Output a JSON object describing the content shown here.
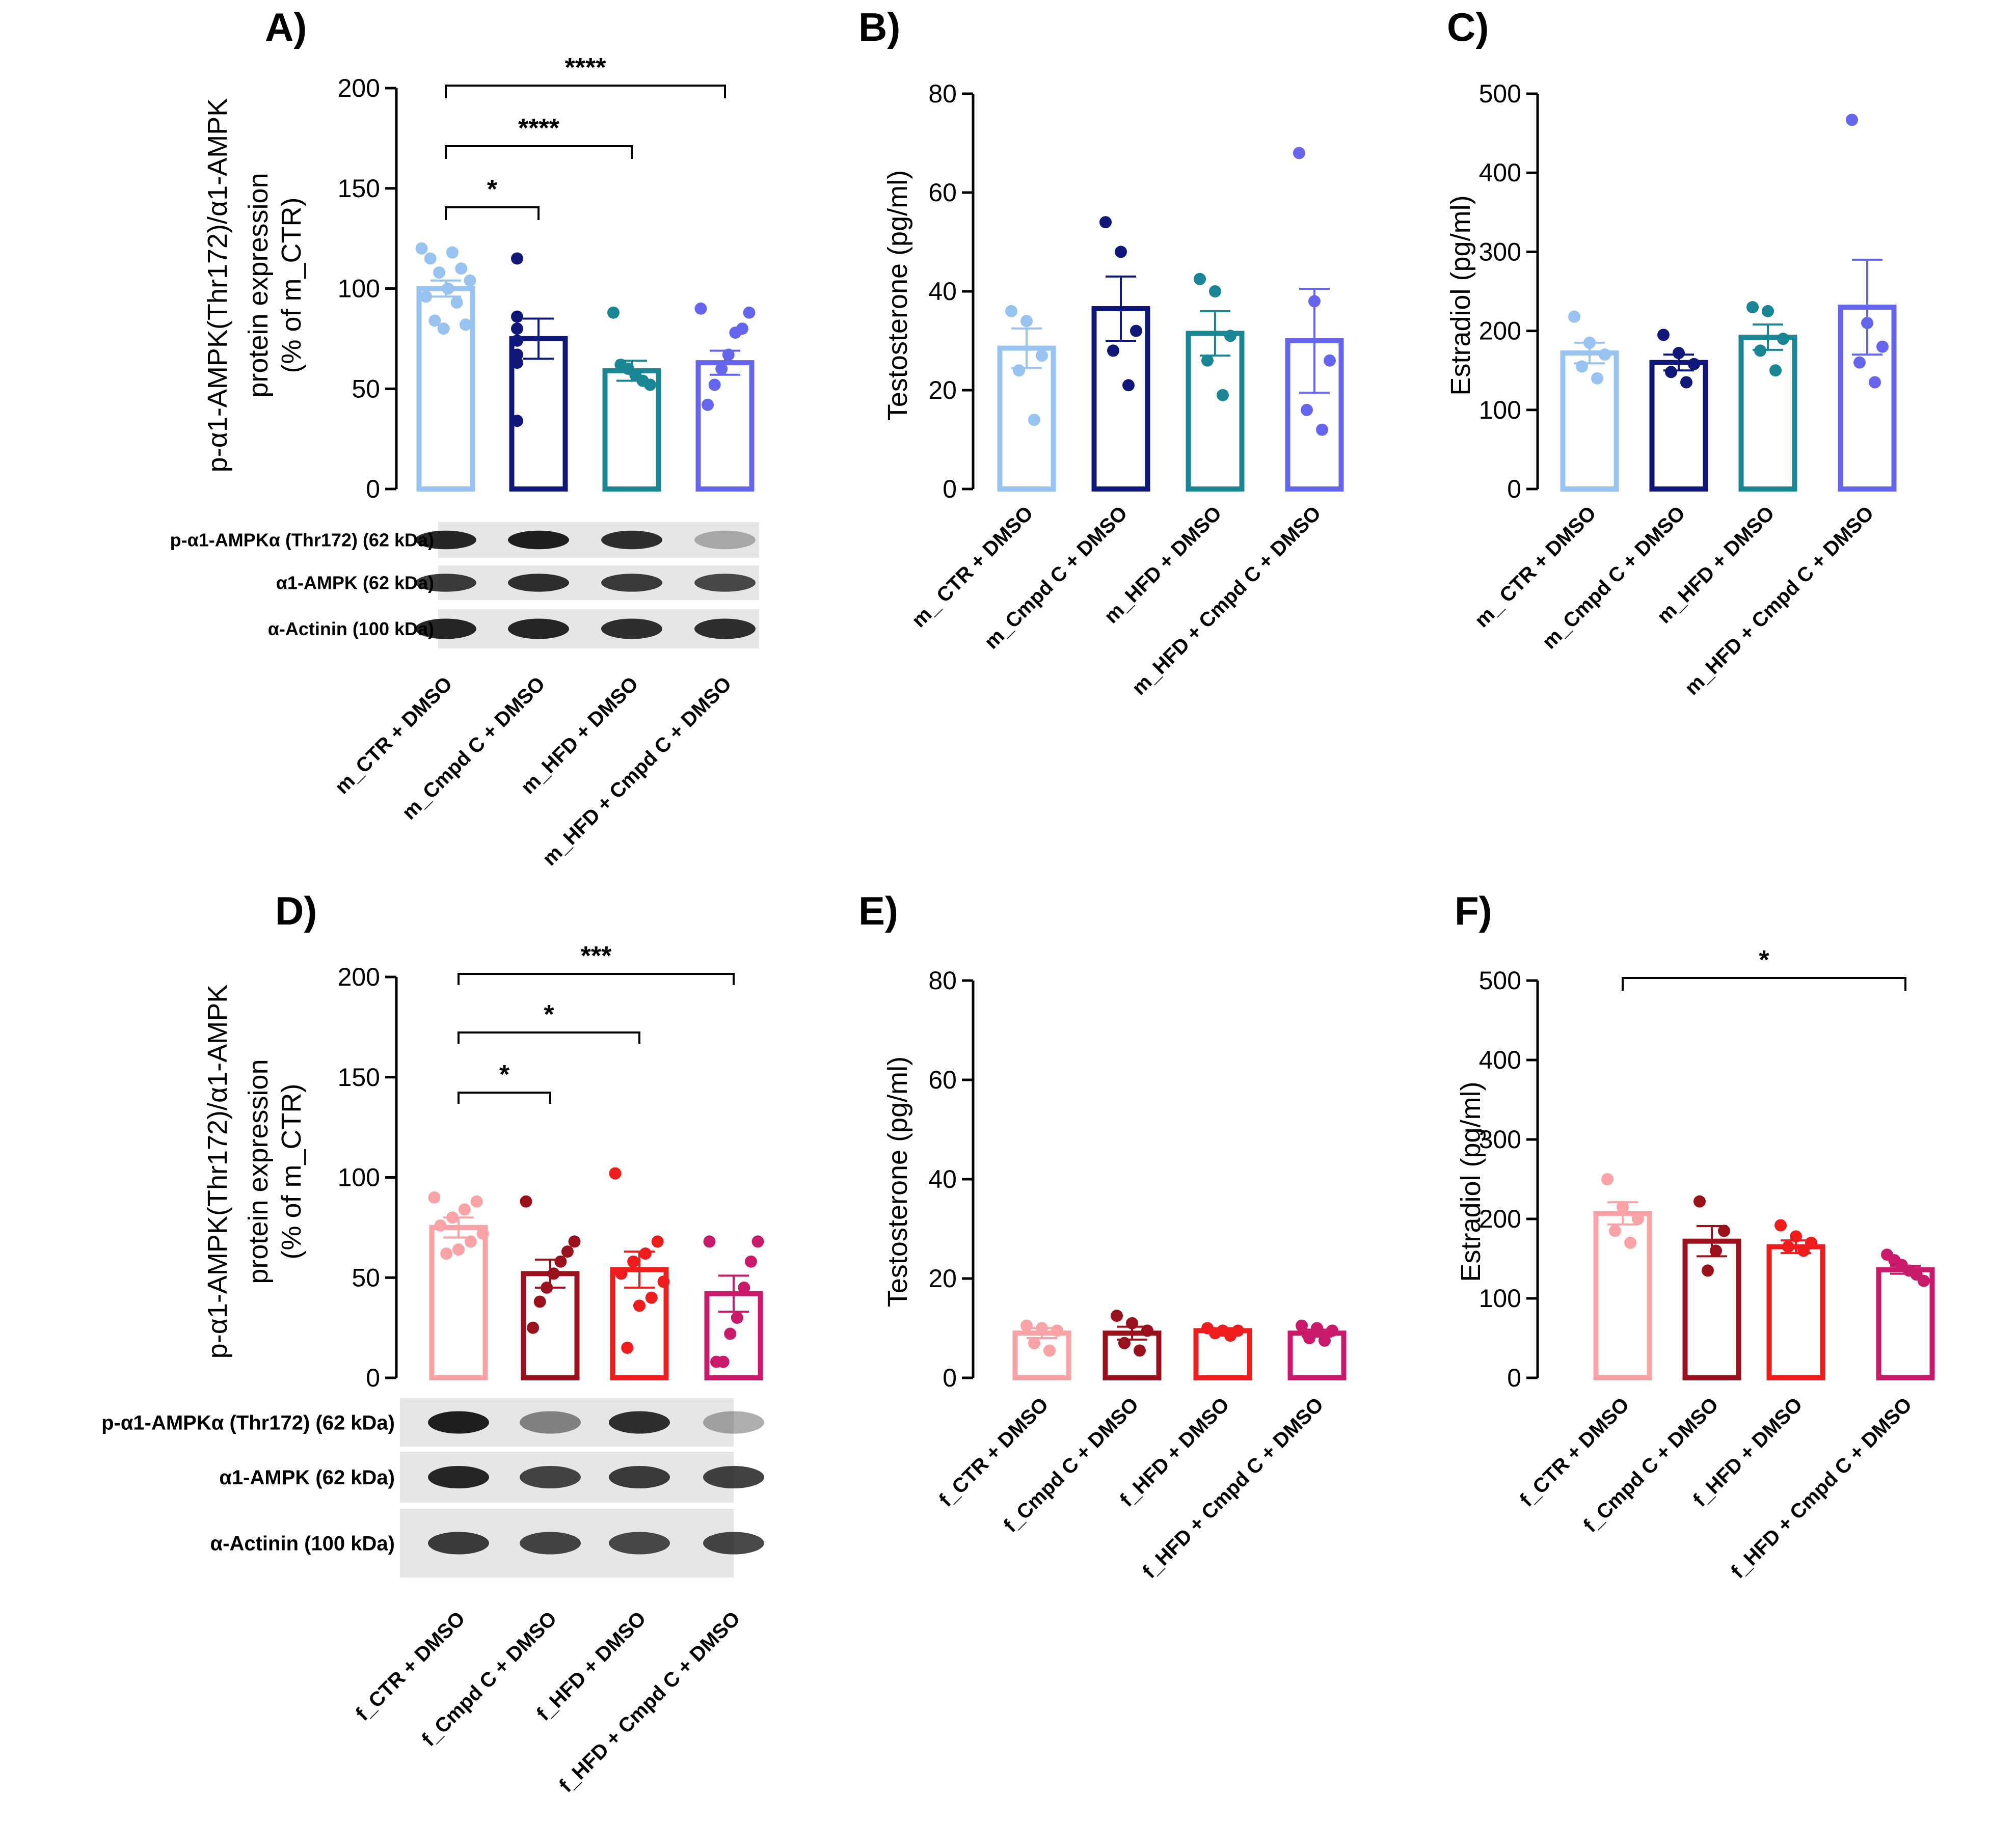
{
  "chart_data": [
    {
      "id": "A",
      "panel_label": "A)",
      "type": "bar",
      "ylabel_lines": [
        "p-α1-AMPK(Thr172)/α1-AMPK",
        "protein expression",
        "(% of m_CTR)"
      ],
      "ylim": [
        0,
        200
      ],
      "yticks": [
        0,
        50,
        100,
        150,
        200
      ],
      "tick_labels": [
        "0",
        "50",
        "100",
        "150",
        "200"
      ],
      "categories": [
        "m_CTR + DMSO",
        "m_Cmpd C + DMSO",
        "m_HFD + DMSO",
        "m_HFD + Cmpd C + DMSO"
      ],
      "colors": [
        "#98c2f0",
        "#0f1878",
        "#1a8694",
        "#6565ee"
      ],
      "means": [
        100,
        75,
        59,
        63
      ],
      "sems": [
        4,
        10,
        5,
        6
      ],
      "points": [
        [
          120,
          118,
          115,
          110,
          108,
          104,
          100,
          96,
          93,
          84,
          82,
          80
        ],
        [
          115,
          86,
          80,
          74,
          67,
          63,
          34
        ],
        [
          88,
          62,
          60,
          57,
          54,
          52
        ],
        [
          90,
          88,
          80,
          78,
          67,
          60,
          52,
          42
        ]
      ],
      "significance": [
        {
          "from": 0,
          "to": 1,
          "label": "*"
        },
        {
          "from": 0,
          "to": 2,
          "label": "****"
        },
        {
          "from": 0,
          "to": 3,
          "label": "****"
        }
      ],
      "blot_labels": [
        "p-α1-AMPKα (Thr172) (62 kDa)",
        "α1-AMPK (62 kDa)",
        "α-Actinin (100 kDa)"
      ]
    },
    {
      "id": "B",
      "panel_label": "B)",
      "type": "bar",
      "ylabel_lines": [
        "Testosterone (pg/ml)"
      ],
      "ylim": [
        0,
        80
      ],
      "yticks": [
        0,
        20,
        40,
        60,
        80
      ],
      "tick_labels": [
        "0",
        "20",
        "40",
        "60",
        "80"
      ],
      "categories": [
        "m_ CTR + DMSO",
        "m_Cmpd C + DMSO",
        "m_HFD + DMSO",
        "m_HFD + Cmpd C + DMSO"
      ],
      "colors": [
        "#98c2f0",
        "#0f1878",
        "#1a8694",
        "#6565ee"
      ],
      "means": [
        28.5,
        36.5,
        31.5,
        30
      ],
      "sems": [
        4,
        6.5,
        4.5,
        10.5
      ],
      "points": [
        [
          36,
          34,
          27,
          24,
          14
        ],
        [
          54,
          48,
          32,
          28,
          21
        ],
        [
          42.5,
          40,
          31,
          26,
          19
        ],
        [
          68,
          38,
          26,
          16,
          12
        ]
      ],
      "significance": []
    },
    {
      "id": "C",
      "panel_label": "C)",
      "type": "bar",
      "ylabel_lines": [
        "Estradiol (pg/ml)"
      ],
      "ylim": [
        0,
        500
      ],
      "yticks": [
        0,
        100,
        200,
        300,
        400,
        500
      ],
      "tick_labels": [
        "0",
        "100",
        "200",
        "300",
        "400",
        "500"
      ],
      "categories": [
        "m_ CTR + DMSO",
        "m_Cmpd C + DMSO",
        "m_HFD + DMSO",
        "m_HFD + Cmpd C + DMSO"
      ],
      "colors": [
        "#98c2f0",
        "#0f1878",
        "#1a8694",
        "#6565ee"
      ],
      "means": [
        172,
        160,
        192,
        230
      ],
      "sems": [
        13,
        10,
        16,
        60
      ],
      "points": [
        [
          218,
          185,
          170,
          155,
          140
        ],
        [
          195,
          172,
          158,
          148,
          135
        ],
        [
          230,
          225,
          190,
          175,
          150
        ],
        [
          467,
          210,
          180,
          160,
          135
        ]
      ],
      "significance": []
    },
    {
      "id": "D",
      "panel_label": "D)",
      "type": "bar",
      "ylabel_lines": [
        "p-α1-AMPK(Thr172)/α1-AMPK",
        "protein expression",
        "(% of m_CTR)"
      ],
      "ylim": [
        0,
        200
      ],
      "yticks": [
        0,
        50,
        100,
        150,
        200
      ],
      "tick_labels": [
        "0",
        "50",
        "100",
        "150",
        "200"
      ],
      "categories": [
        "f_CTR + DMSO",
        "f_Cmpd C + DMSO",
        "f_HFD + DMSO",
        "f_HFD + Cmpd C + DMSO"
      ],
      "colors": [
        "#f9a3a6",
        "#99111c",
        "#ee1c1c",
        "#c8196a"
      ],
      "means": [
        75,
        52,
        54,
        42
      ],
      "sems": [
        5,
        7,
        9,
        9
      ],
      "points": [
        [
          90,
          88,
          84,
          80,
          76,
          72,
          68,
          64,
          62
        ],
        [
          88,
          68,
          63,
          58,
          52,
          45,
          38,
          25
        ],
        [
          102,
          68,
          62,
          58,
          52,
          48,
          40,
          36,
          15
        ],
        [
          68,
          68,
          58,
          45,
          30,
          22,
          8,
          8
        ]
      ],
      "significance": [
        {
          "from": 0,
          "to": 1,
          "label": "*"
        },
        {
          "from": 0,
          "to": 2,
          "label": "*"
        },
        {
          "from": 0,
          "to": 3,
          "label": "***"
        }
      ],
      "blot_labels": [
        "p-α1-AMPKα (Thr172) (62 kDa)",
        "α1-AMPK (62 kDa)",
        "α-Actinin (100 kDa)"
      ]
    },
    {
      "id": "E",
      "panel_label": "E)",
      "type": "bar",
      "ylabel_lines": [
        "Testosterone (pg/ml)"
      ],
      "ylim": [
        0,
        80
      ],
      "yticks": [
        0,
        20,
        40,
        60,
        80
      ],
      "tick_labels": [
        "0",
        "20",
        "40",
        "60",
        "80"
      ],
      "categories": [
        "f_CTR + DMSO",
        "f_Cmpd C + DMSO",
        "f_HFD + DMSO",
        "f_HFD + Cmpd C + DMSO"
      ],
      "colors": [
        "#f9a3a6",
        "#99111c",
        "#ee1c1c",
        "#c8196a"
      ],
      "means": [
        9,
        9,
        9.5,
        9
      ],
      "sems": [
        1,
        1.3,
        0.5,
        0.7
      ],
      "points": [
        [
          10.5,
          10,
          9.5,
          7,
          5.5
        ],
        [
          12.5,
          11,
          9.5,
          7,
          5.5
        ],
        [
          10,
          9.5,
          9.5,
          9,
          8.5
        ],
        [
          10.5,
          10,
          9.5,
          8,
          7.5
        ]
      ],
      "significance": []
    },
    {
      "id": "F",
      "panel_label": "F)",
      "type": "bar",
      "ylabel_lines": [
        "Estradiol (pg/ml)"
      ],
      "ylim": [
        0,
        500
      ],
      "yticks": [
        0,
        100,
        200,
        300,
        400,
        500
      ],
      "tick_labels": [
        "0",
        "100",
        "200",
        "300",
        "400",
        "500"
      ],
      "categories": [
        "f_CTR + DMSO",
        "f_Cmpd C + DMSO",
        "f_HFD + DMSO",
        "f_HFD + Cmpd C + DMSO"
      ],
      "colors": [
        "#f9a3a6",
        "#99111c",
        "#ee1c1c",
        "#c8196a"
      ],
      "means": [
        207,
        172,
        165,
        136
      ],
      "sems": [
        14,
        19,
        8,
        5
      ],
      "points": [
        [
          250,
          215,
          200,
          185,
          170
        ],
        [
          222,
          185,
          160,
          135
        ],
        [
          192,
          178,
          170,
          165,
          160
        ],
        [
          155,
          148,
          142,
          135,
          130,
          122
        ]
      ],
      "significance": [
        {
          "from": 0,
          "to": 3,
          "label": "*"
        }
      ]
    }
  ]
}
